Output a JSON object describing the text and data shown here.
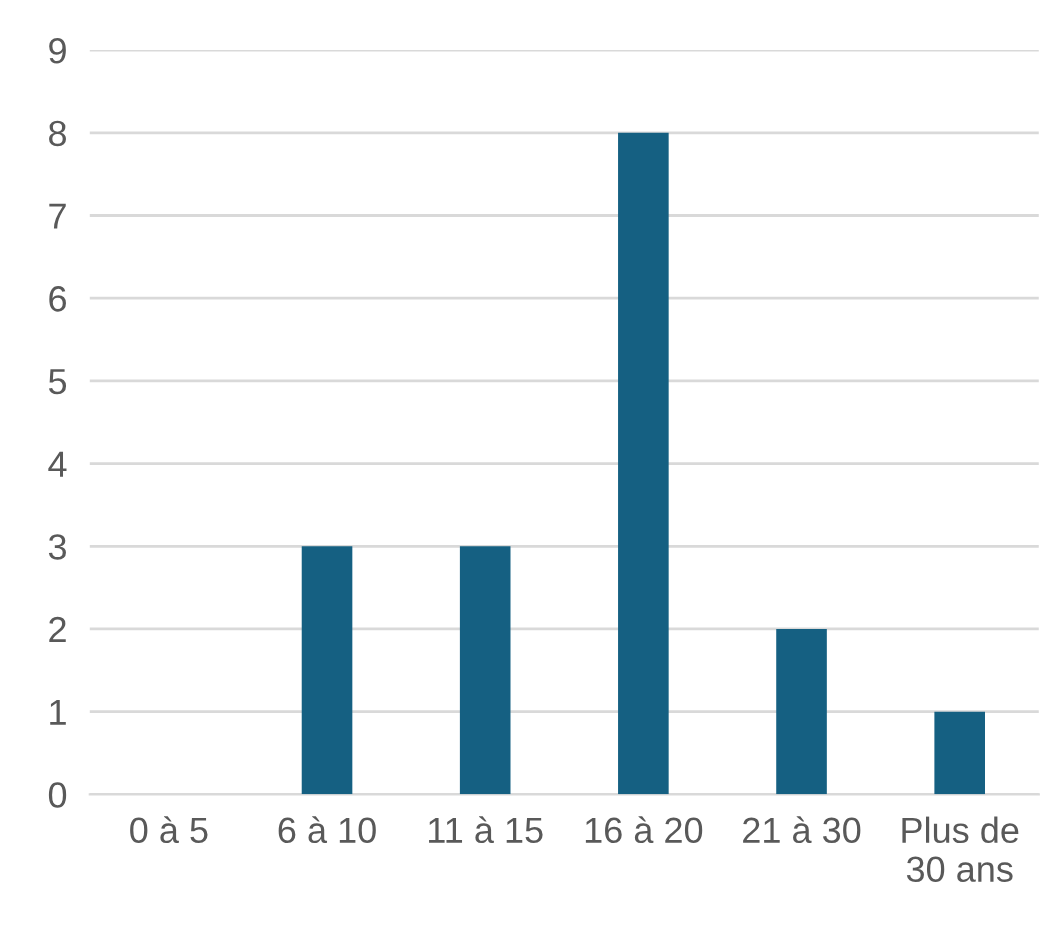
{
  "chart_data": {
    "type": "bar",
    "categories": [
      "0 à 5",
      "6 à 10",
      "11 à 15",
      "16 à 20",
      "21 à 30",
      "Plus de\n30 ans"
    ],
    "values": [
      0,
      3,
      3,
      8,
      2,
      1
    ],
    "color": "#156082",
    "ylim": [
      0,
      9
    ],
    "yticks": [
      0,
      1,
      2,
      3,
      4,
      5,
      6,
      7,
      8,
      9
    ],
    "grid": "y",
    "legend": false
  }
}
